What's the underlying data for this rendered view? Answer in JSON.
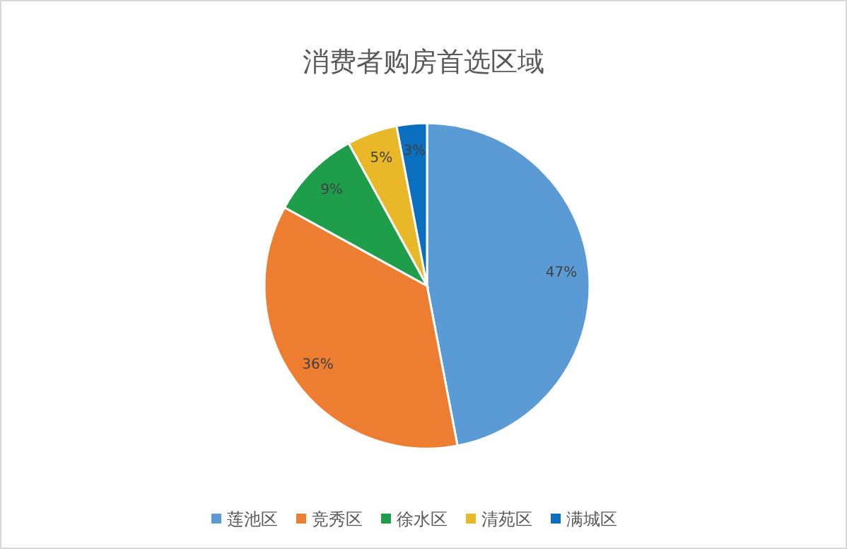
{
  "chart_data": {
    "type": "pie",
    "title": "消费者购房首选区域",
    "categories": [
      "莲池区",
      "竞秀区",
      "徐水区",
      "清苑区",
      "满城区"
    ],
    "values": [
      47,
      36,
      9,
      5,
      3
    ],
    "colors": [
      "#5b9bd5",
      "#ed7d31",
      "#1e9e4a",
      "#e8b828",
      "#0b6fbf"
    ],
    "value_labels": [
      "47%",
      "36%",
      "9%",
      "5%",
      "3%"
    ],
    "legend": "bottom"
  }
}
